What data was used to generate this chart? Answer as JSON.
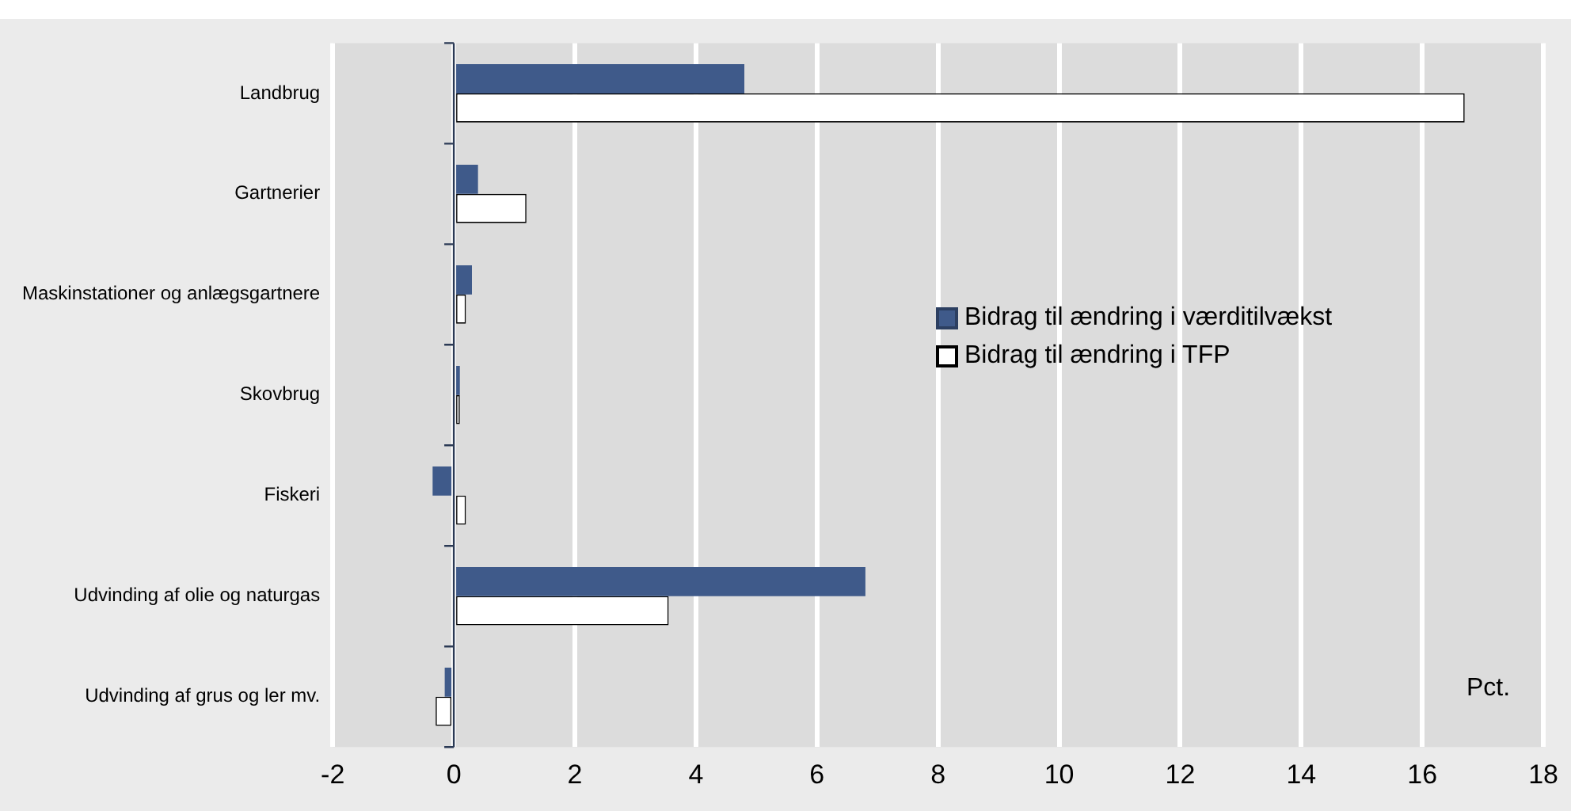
{
  "chart_data": {
    "type": "bar",
    "orientation": "horizontal",
    "categories": [
      "Landbrug",
      "Gartnerier",
      "Maskinstationer og anlægsgartnere",
      "Skovbrug",
      "Fiskeri",
      "Udvinding af olie og naturgas",
      "Udvinding af grus og ler mv."
    ],
    "series": [
      {
        "name": "Bidrag til ændring i værditilvækst",
        "color": "#3f5a8a",
        "values": [
          4.8,
          0.4,
          0.3,
          0.1,
          -0.35,
          6.8,
          -0.15
        ]
      },
      {
        "name": "Bidrag til ændring i TFP",
        "color": "#ffffff",
        "values": [
          16.7,
          1.2,
          0.2,
          0.1,
          0.2,
          3.55,
          -0.3
        ]
      }
    ],
    "xlim": [
      -2,
      18
    ],
    "xticks": [
      -2,
      0,
      2,
      4,
      6,
      8,
      10,
      12,
      14,
      16,
      18
    ],
    "grid": "x",
    "legend": "right",
    "ref_lines": [
      {
        "axis": "x",
        "value": 0,
        "color": "#2b3a55"
      }
    ],
    "annotations": [
      "Pct."
    ]
  }
}
